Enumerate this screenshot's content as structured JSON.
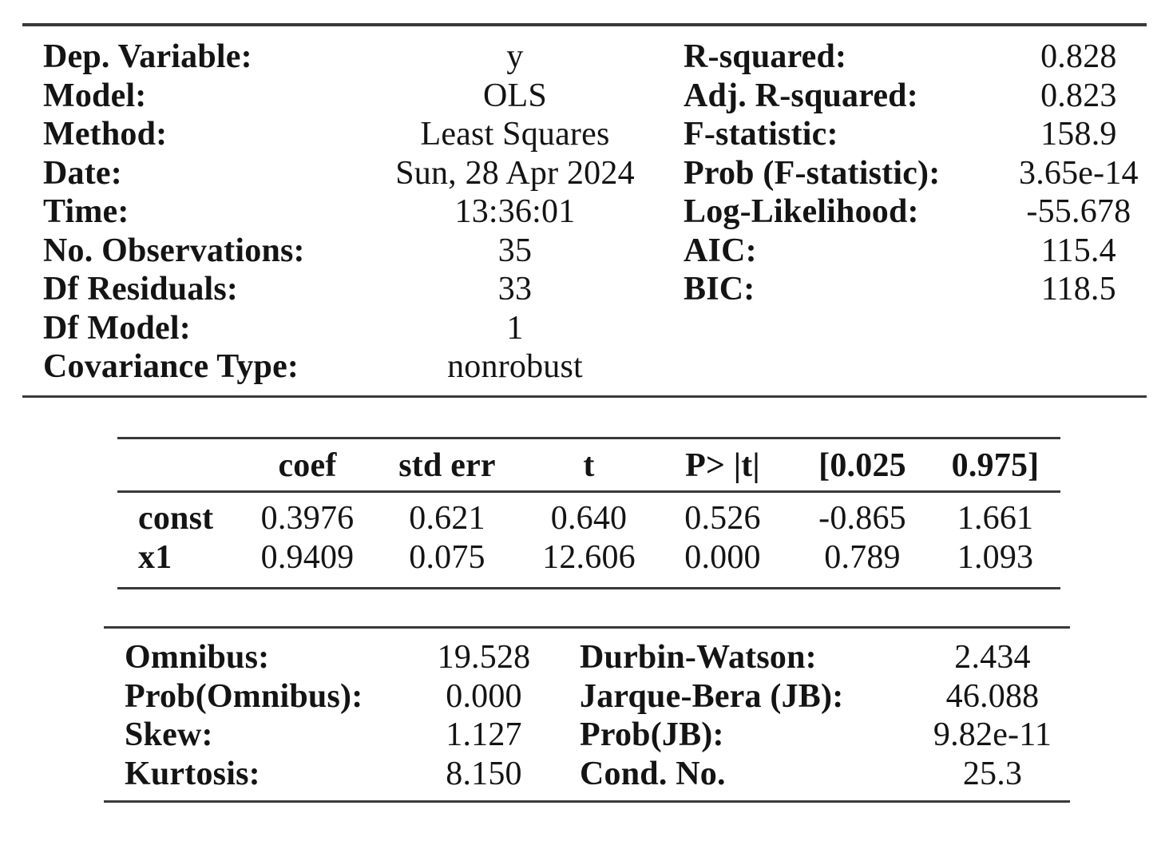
{
  "summary": {
    "left": [
      {
        "label": "Dep. Variable:",
        "value": "y"
      },
      {
        "label": "Model:",
        "value": "OLS"
      },
      {
        "label": "Method:",
        "value": "Least Squares"
      },
      {
        "label": "Date:",
        "value": "Sun, 28 Apr 2024"
      },
      {
        "label": "Time:",
        "value": "13:36:01"
      },
      {
        "label": "No. Observations:",
        "value": "35"
      },
      {
        "label": "Df Residuals:",
        "value": "33"
      },
      {
        "label": "Df Model:",
        "value": "1"
      },
      {
        "label": "Covariance Type:",
        "value": "nonrobust"
      }
    ],
    "right": [
      {
        "label": "R-squared:",
        "value": "0.828"
      },
      {
        "label": "Adj. R-squared:",
        "value": "0.823"
      },
      {
        "label": "F-statistic:",
        "value": "158.9"
      },
      {
        "label": "Prob (F-statistic):",
        "value": "3.65e-14"
      },
      {
        "label": "Log-Likelihood:",
        "value": "-55.678"
      },
      {
        "label": "AIC:",
        "value": "115.4"
      },
      {
        "label": "BIC:",
        "value": "118.5"
      }
    ]
  },
  "coefficients": {
    "headers": [
      "",
      "coef",
      "std err",
      "t",
      "P> |t|",
      "[0.025",
      "0.975]"
    ],
    "rows": [
      {
        "name": "const",
        "cells": [
          "0.3976",
          "0.621",
          "0.640",
          "0.526",
          "-0.865",
          "1.661"
        ]
      },
      {
        "name": "x1",
        "cells": [
          "0.9409",
          "0.075",
          "12.606",
          "0.000",
          "0.789",
          "1.093"
        ]
      }
    ]
  },
  "diagnostics": {
    "left": [
      {
        "label": "Omnibus:",
        "value": "19.528"
      },
      {
        "label": "Prob(Omnibus):",
        "value": "0.000"
      },
      {
        "label": "Skew:",
        "value": "1.127"
      },
      {
        "label": "Kurtosis:",
        "value": "8.150"
      }
    ],
    "right": [
      {
        "label": "Durbin-Watson:",
        "value": "2.434"
      },
      {
        "label": "Jarque-Bera (JB):",
        "value": "46.088"
      },
      {
        "label": "Prob(JB):",
        "value": "9.82e-11"
      },
      {
        "label": "Cond. No.",
        "value": "25.3"
      }
    ]
  }
}
